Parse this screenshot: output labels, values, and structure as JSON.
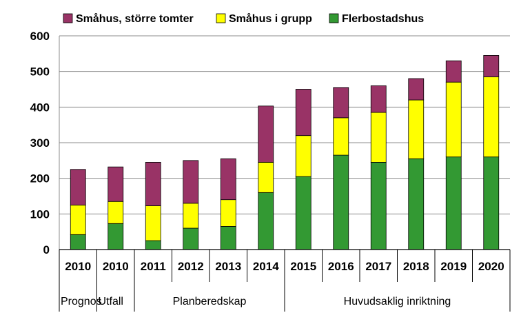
{
  "chart_data": {
    "type": "bar",
    "stacked": true,
    "categories": [
      "2010",
      "2010",
      "2011",
      "2012",
      "2013",
      "2014",
      "2015",
      "2016",
      "2017",
      "2018",
      "2019",
      "2020"
    ],
    "groups": [
      {
        "label": "Prognos",
        "span": 1
      },
      {
        "label": "Utfall",
        "span": 1
      },
      {
        "label": "Planberedskap",
        "span": 4
      },
      {
        "label": "Huvudsaklig inriktning",
        "span": 6
      }
    ],
    "series": [
      {
        "name": "Flerbostadshus",
        "color": "#339933",
        "values": [
          42,
          73,
          25,
          60,
          65,
          160,
          205,
          265,
          245,
          255,
          260,
          260
        ]
      },
      {
        "name": "Småhus i grupp",
        "color": "#ffff00",
        "values": [
          83,
          62,
          98,
          70,
          75,
          85,
          115,
          105,
          140,
          165,
          210,
          225
        ]
      },
      {
        "name": "Småhus, större tomter",
        "color": "#993366",
        "values": [
          100,
          97,
          122,
          120,
          115,
          158,
          130,
          85,
          75,
          60,
          60,
          60
        ]
      }
    ],
    "legend_order": [
      "Småhus, större tomter",
      "Småhus i grupp",
      "Flerbostadshus"
    ],
    "legend_position": "top",
    "yticks": [
      "0",
      "100",
      "200",
      "300",
      "400",
      "500",
      "600"
    ],
    "ylim": [
      0,
      600
    ],
    "gridlines": true,
    "title": "",
    "xlabel": "",
    "ylabel": ""
  }
}
